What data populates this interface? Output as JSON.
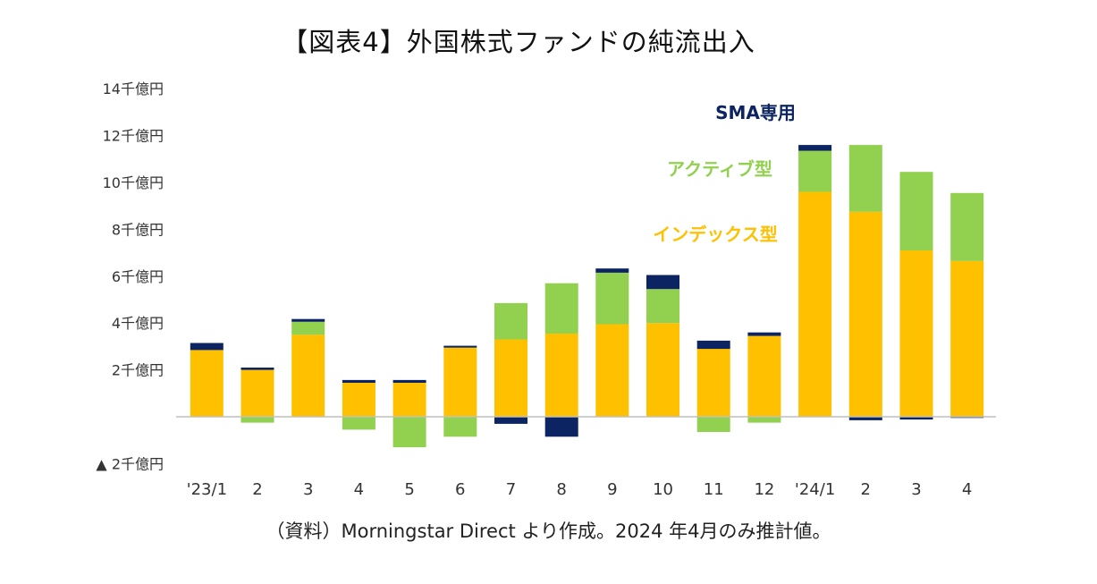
{
  "chart_data": {
    "type": "bar",
    "stacked": true,
    "title": "【図表4】外国株式ファンドの純流出入",
    "source": "（資料）Morningstar Direct より作成。2024 年4月のみ推計値。",
    "categories": [
      "'23/1",
      "2",
      "3",
      "4",
      "5",
      "6",
      "7",
      "8",
      "9",
      "10",
      "11",
      "12",
      "'24/1",
      "2",
      "3",
      "4"
    ],
    "ylim": [
      -2,
      14
    ],
    "yticks": [
      {
        "value": 14,
        "label": "14千億円"
      },
      {
        "value": 12,
        "label": "12千億円"
      },
      {
        "value": 10,
        "label": "10千億円"
      },
      {
        "value": 8,
        "label": "8千億円"
      },
      {
        "value": 6,
        "label": "6千億円"
      },
      {
        "value": 4,
        "label": "4千億円"
      },
      {
        "value": 2,
        "label": "2千億円"
      },
      {
        "value": -2,
        "label": "▲ 2千億円"
      }
    ],
    "series": [
      {
        "key": "index",
        "name": "インデックス型",
        "color": "#FFC000",
        "values": [
          2.85,
          2.0,
          3.5,
          1.45,
          1.45,
          2.95,
          3.3,
          3.55,
          3.95,
          4.0,
          2.9,
          3.45,
          9.6,
          8.75,
          7.1,
          6.65
        ]
      },
      {
        "key": "active",
        "name": "アクティブ型",
        "color": "#92D050",
        "values": [
          0,
          -0.25,
          0.55,
          -0.55,
          -1.3,
          -0.85,
          1.55,
          2.15,
          2.2,
          1.45,
          -0.65,
          -0.25,
          1.75,
          2.85,
          3.35,
          2.9
        ]
      },
      {
        "key": "sma",
        "name": "SMA専用",
        "color": "#0C2461",
        "values": [
          0.3,
          0.1,
          0.12,
          0.12,
          0.12,
          0.08,
          -0.3,
          -0.85,
          0.18,
          0.6,
          0.35,
          0.15,
          0.25,
          -0.15,
          -0.12,
          -0.05
        ]
      }
    ],
    "legend": [
      {
        "series": "sma",
        "label": "SMA専用",
        "color": "#0C2461"
      },
      {
        "series": "active",
        "label": "アクティブ型",
        "color": "#92D050"
      },
      {
        "series": "index",
        "label": "インデックス型",
        "color": "#FFC000"
      }
    ]
  }
}
